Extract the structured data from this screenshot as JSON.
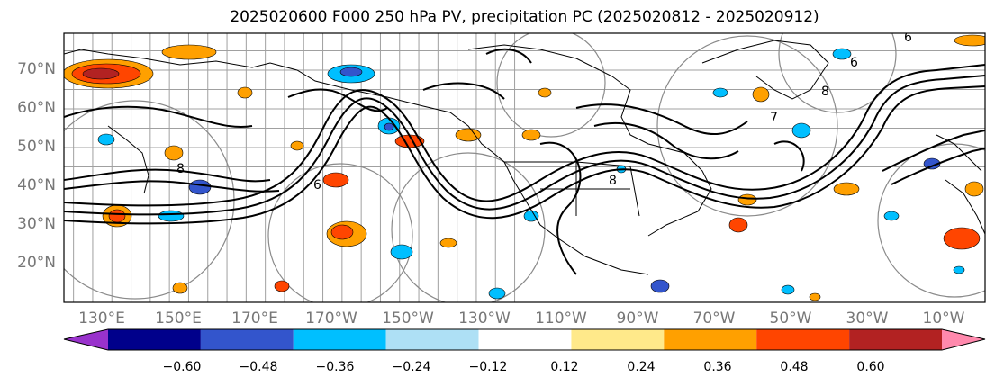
{
  "title": "2025020600 F000 250 hPa PV, precipitation PC (2025020812 - 2025020912)",
  "map": {
    "lat_labels": [
      "70°N",
      "60°N",
      "50°N",
      "40°N",
      "30°N",
      "20°N"
    ],
    "lon_labels": [
      "130°E",
      "150°E",
      "170°E",
      "170°W",
      "150°W",
      "130°W",
      "110°W",
      "90°W",
      "70°W",
      "50°W",
      "30°W",
      "10°W"
    ]
  },
  "colorbar": {
    "ticks": [
      "−0.60",
      "−0.48",
      "−0.36",
      "−0.24",
      "−0.12",
      "0.12",
      "0.24",
      "0.36",
      "0.48",
      "0.60"
    ],
    "colors": [
      "#9932cc",
      "#00008b",
      "#3355cc",
      "#00bfff",
      "#aee0f5",
      "#ffffff",
      "#ffe98a",
      "#ffa000",
      "#ff4500",
      "#b22222",
      "#ff89ad"
    ]
  }
}
